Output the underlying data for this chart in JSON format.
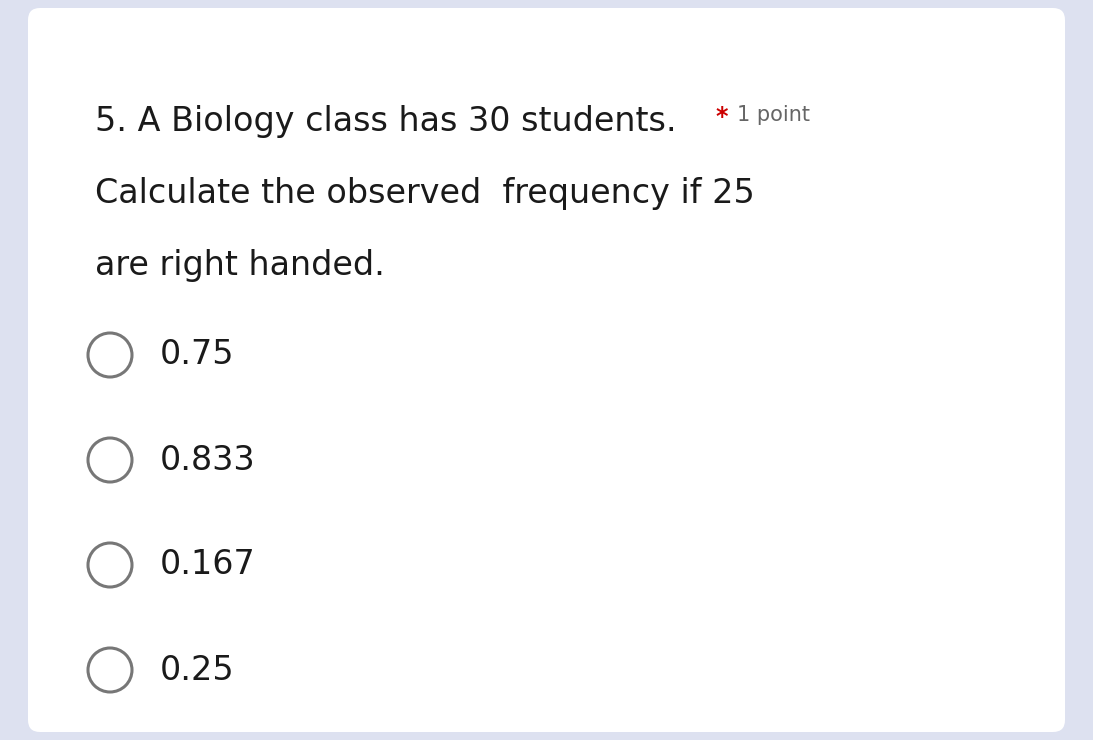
{
  "background_color": "#dde1f0",
  "card_color": "#ffffff",
  "question_line1": "5. A Biology class has 30 students.",
  "question_line2": "Calculate the observed  frequency if 25",
  "question_line3": "are right handed.",
  "star_text": "*",
  "point_text": "1 point",
  "star_color": "#cc0000",
  "point_color": "#666666",
  "options": [
    "0.75",
    "0.833",
    "0.167",
    "0.25"
  ],
  "text_color": "#1a1a1a",
  "option_text_color": "#1a1a1a",
  "circle_edge_color": "#777777",
  "circle_fill_color": "#ffffff",
  "question_fontsize": 24,
  "option_fontsize": 24,
  "point_fontsize": 15,
  "fig_width": 10.93,
  "fig_height": 7.4,
  "dpi": 100
}
